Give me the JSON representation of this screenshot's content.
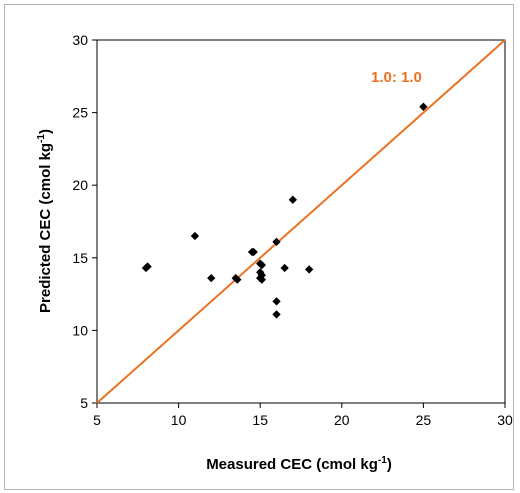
{
  "chart_data": {
    "type": "scatter",
    "title": "",
    "xlabel": {
      "main": "Measured CEC (cmol kg",
      "sup": "-1",
      "close": ")"
    },
    "ylabel": {
      "main": "Predicted CEC (cmol kg",
      "sup": "-1",
      "close": ")"
    },
    "xlim": [
      5,
      30
    ],
    "ylim": [
      5,
      30
    ],
    "xticks": [
      "5",
      "10",
      "15",
      "20",
      "25",
      "30"
    ],
    "yticks": [
      "5",
      "10",
      "15",
      "20",
      "25",
      "30"
    ],
    "grid": false,
    "series": [
      {
        "points": [
          {
            "x": 8.0,
            "y": 14.3
          },
          {
            "x": 8.1,
            "y": 14.4
          },
          {
            "x": 11.0,
            "y": 16.5
          },
          {
            "x": 12.0,
            "y": 13.6
          },
          {
            "x": 13.5,
            "y": 13.6
          },
          {
            "x": 13.6,
            "y": 13.5
          },
          {
            "x": 14.5,
            "y": 15.4
          },
          {
            "x": 14.6,
            "y": 15.4
          },
          {
            "x": 15.0,
            "y": 14.6
          },
          {
            "x": 15.1,
            "y": 14.5
          },
          {
            "x": 15.0,
            "y": 14.0
          },
          {
            "x": 15.1,
            "y": 13.8
          },
          {
            "x": 15.0,
            "y": 13.6
          },
          {
            "x": 15.1,
            "y": 13.5
          },
          {
            "x": 16.0,
            "y": 16.1
          },
          {
            "x": 16.0,
            "y": 12.0
          },
          {
            "x": 16.0,
            "y": 11.1
          },
          {
            "x": 16.5,
            "y": 14.3
          },
          {
            "x": 17.0,
            "y": 19.0
          },
          {
            "x": 18.0,
            "y": 14.2
          },
          {
            "x": 25.0,
            "y": 25.4
          }
        ],
        "color": "#000000"
      }
    ],
    "reference_line": {
      "x": [
        5,
        30
      ],
      "y": [
        5,
        30
      ],
      "color": "#ec7022",
      "label": "1.0: 1.0"
    }
  }
}
